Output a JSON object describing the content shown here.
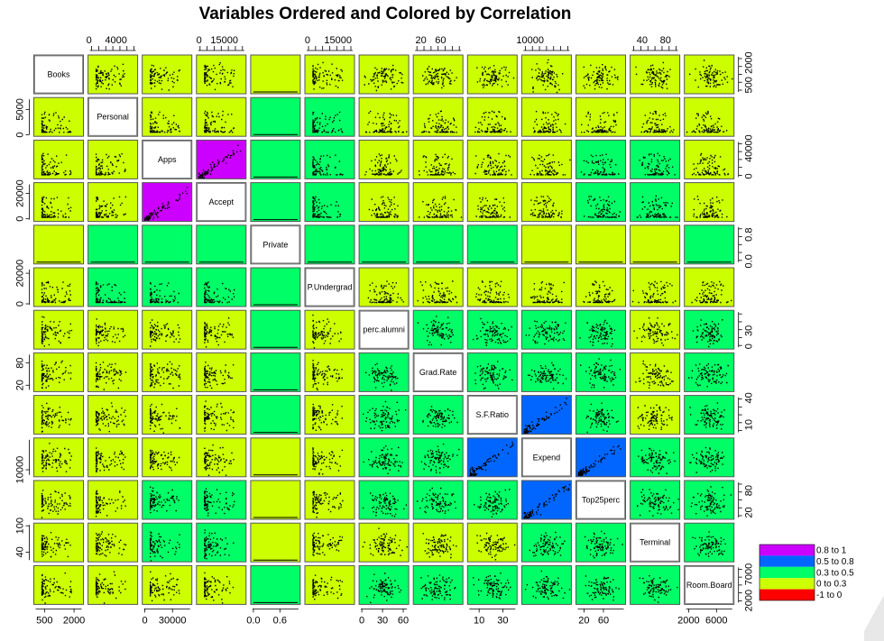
{
  "chart_data": {
    "type": "scatter",
    "title": "Variables Ordered and Colored by Correlation",
    "variables": [
      "Books",
      "Personal",
      "Apps",
      "Accept",
      "Private",
      "P.Undergrad",
      "perc.alumni",
      "Grad.Rate",
      "S.F.Ratio",
      "Expend",
      "Top25perc",
      "Terminal",
      "Room.Board"
    ],
    "ranges": [
      [
        96,
        2340
      ],
      [
        250,
        6800
      ],
      [
        81,
        48094
      ],
      [
        72,
        26330
      ],
      [
        0,
        1
      ],
      [
        1,
        21836
      ],
      [
        0,
        64
      ],
      [
        10,
        100
      ],
      [
        2.5,
        39.8
      ],
      [
        3186,
        56233
      ],
      [
        9,
        100
      ],
      [
        24,
        100
      ],
      [
        1780,
        8124
      ]
    ],
    "axis_ticks": {
      "top": [
        {
          "column": 1,
          "labels": [
            "0",
            "4000"
          ],
          "values": [
            0,
            4000
          ]
        },
        {
          "column": 3,
          "labels": [
            "0",
            "15000"
          ],
          "values": [
            0,
            15000
          ]
        },
        {
          "column": 5,
          "labels": [
            "0",
            "15000"
          ],
          "values": [
            0,
            15000
          ]
        },
        {
          "column": 7,
          "labels": [
            "20",
            "60"
          ],
          "values": [
            20,
            60
          ]
        },
        {
          "column": 9,
          "labels": [
            "10000"
          ],
          "values": [
            10000
          ]
        },
        {
          "column": 11,
          "labels": [
            "40",
            "80"
          ],
          "values": [
            40,
            80
          ]
        }
      ],
      "bottom": [
        {
          "column": 0,
          "labels": [
            "500",
            "2000"
          ],
          "values": [
            500,
            2000
          ]
        },
        {
          "column": 2,
          "labels": [
            "0",
            "30000"
          ],
          "values": [
            0,
            30000
          ]
        },
        {
          "column": 4,
          "labels": [
            "0.0",
            "0.6"
          ],
          "values": [
            0,
            0.6
          ]
        },
        {
          "column": 6,
          "labels": [
            "0",
            "30",
            "60"
          ],
          "values": [
            0,
            30,
            60
          ]
        },
        {
          "column": 8,
          "labels": [
            "10",
            "30"
          ],
          "values": [
            10,
            30
          ]
        },
        {
          "column": 10,
          "labels": [
            "20",
            "60"
          ],
          "values": [
            20,
            60
          ]
        },
        {
          "column": 12,
          "labels": [
            "2000",
            "6000"
          ],
          "values": [
            2000,
            6000
          ]
        }
      ],
      "left": [
        {
          "row": 1,
          "labels": [
            "0",
            "5000"
          ],
          "values": [
            0,
            5000
          ]
        },
        {
          "row": 3,
          "labels": [
            "0",
            "20000"
          ],
          "values": [
            0,
            20000
          ]
        },
        {
          "row": 5,
          "labels": [
            "0",
            "20000"
          ],
          "values": [
            0,
            20000
          ]
        },
        {
          "row": 7,
          "labels": [
            "20",
            "80"
          ],
          "values": [
            20,
            80
          ]
        },
        {
          "row": 9,
          "labels": [
            "10000"
          ],
          "values": [
            10000
          ]
        },
        {
          "row": 11,
          "labels": [
            "40",
            "100"
          ],
          "values": [
            40,
            100
          ]
        }
      ],
      "right": [
        {
          "row": 0,
          "labels": [
            "500",
            "2000"
          ],
          "values": [
            500,
            2000
          ]
        },
        {
          "row": 2,
          "labels": [
            "0",
            "40000"
          ],
          "values": [
            0,
            40000
          ]
        },
        {
          "row": 4,
          "labels": [
            "0.0",
            "0.8"
          ],
          "values": [
            0,
            0.8
          ]
        },
        {
          "row": 6,
          "labels": [
            "0",
            "30"
          ],
          "values": [
            0,
            30
          ]
        },
        {
          "row": 8,
          "labels": [
            "10",
            "40"
          ],
          "values": [
            10,
            40
          ]
        },
        {
          "row": 10,
          "labels": [
            "20",
            "80"
          ],
          "values": [
            20,
            80
          ]
        },
        {
          "row": 12,
          "labels": [
            "2000",
            "7000"
          ],
          "values": [
            2000,
            7000
          ]
        }
      ]
    },
    "cell_colors": [
      [
        null,
        3,
        3,
        3,
        3,
        3,
        3,
        3,
        3,
        3,
        3,
        3,
        3
      ],
      [
        3,
        null,
        3,
        3,
        2,
        2,
        3,
        3,
        3,
        3,
        3,
        3,
        3
      ],
      [
        3,
        3,
        null,
        0,
        2,
        2,
        3,
        3,
        3,
        3,
        2,
        2,
        3
      ],
      [
        3,
        3,
        0,
        null,
        2,
        2,
        3,
        3,
        3,
        3,
        2,
        2,
        3
      ],
      [
        3,
        2,
        2,
        2,
        null,
        2,
        2,
        2,
        2,
        3,
        3,
        3,
        2
      ],
      [
        3,
        2,
        2,
        2,
        2,
        null,
        3,
        3,
        3,
        3,
        3,
        3,
        3
      ],
      [
        3,
        3,
        3,
        3,
        2,
        3,
        null,
        2,
        2,
        2,
        2,
        3,
        2
      ],
      [
        3,
        3,
        3,
        3,
        2,
        3,
        2,
        null,
        2,
        2,
        2,
        3,
        2
      ],
      [
        3,
        3,
        3,
        3,
        2,
        3,
        2,
        2,
        null,
        1,
        2,
        3,
        2
      ],
      [
        3,
        3,
        3,
        3,
        3,
        3,
        2,
        2,
        1,
        null,
        1,
        2,
        2
      ],
      [
        3,
        3,
        2,
        2,
        3,
        3,
        2,
        2,
        2,
        1,
        null,
        2,
        2
      ],
      [
        3,
        3,
        2,
        2,
        3,
        3,
        3,
        3,
        3,
        2,
        2,
        null,
        2
      ],
      [
        3,
        3,
        3,
        3,
        2,
        3,
        2,
        2,
        2,
        2,
        2,
        2,
        null
      ]
    ],
    "legend": {
      "placement": "bottom-right",
      "entries": [
        {
          "label": "0.8 to 1",
          "color": "#cc00ff"
        },
        {
          "label": "0.5 to 0.8",
          "color": "#0066ff"
        },
        {
          "label": "0.3 to 0.5",
          "color": "#00ff66"
        },
        {
          "label": "0 to 0.3",
          "color": "#ccff00"
        },
        {
          "label": "-1 to 0",
          "color": "#ff0000"
        }
      ]
    },
    "grid": false
  }
}
